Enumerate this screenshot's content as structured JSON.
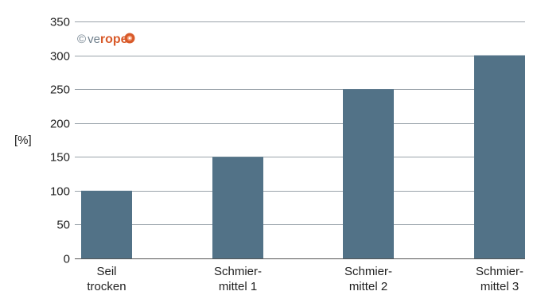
{
  "chart_data": {
    "type": "bar",
    "ylabel": "[%]",
    "ylim": [
      0,
      350
    ],
    "yticks": [
      0,
      50,
      100,
      150,
      200,
      250,
      300,
      350
    ],
    "grid": true,
    "categories": [
      [
        "Seil",
        "trocken"
      ],
      [
        "Schmier-",
        "mittel 1"
      ],
      [
        "Schmier-",
        "mittel 2"
      ],
      [
        "Schmier-",
        "mittel 3"
      ]
    ],
    "values": [
      100,
      150,
      250,
      300
    ]
  },
  "watermark": {
    "copyright": "©",
    "brand_ve": "ve",
    "brand_rope": "rope"
  },
  "colors": {
    "bar": "#527287",
    "grid": "#9aa3aa",
    "axis": "#555555",
    "brand_accent": "#d85a2a"
  }
}
